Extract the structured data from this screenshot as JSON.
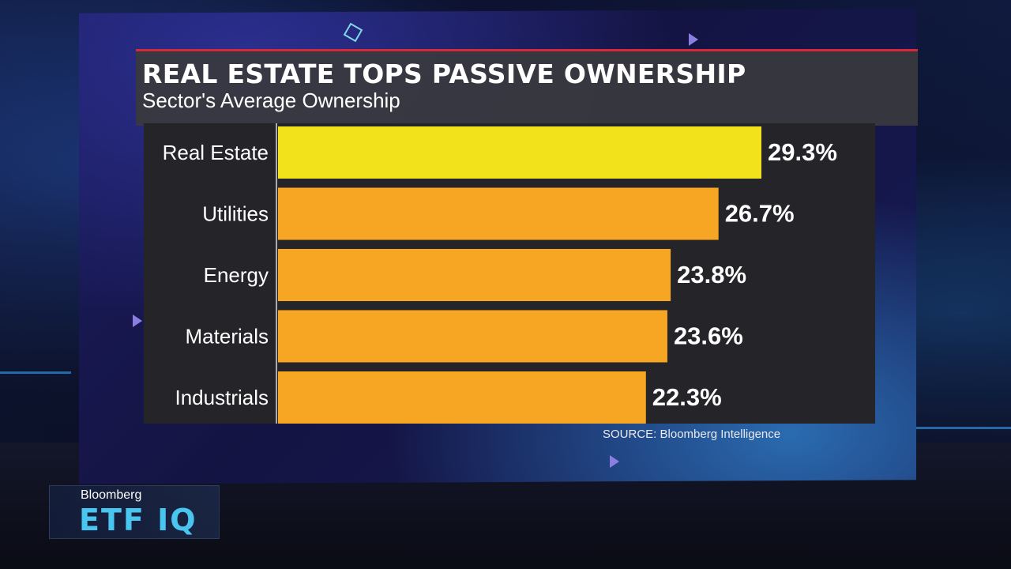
{
  "chart_data": {
    "type": "bar",
    "orientation": "horizontal",
    "title": "REAL ESTATE TOPS PASSIVE OWNERSHIP",
    "subtitle": "Sector's Average Ownership",
    "categories": [
      "Real Estate",
      "Utilities",
      "Energy",
      "Materials",
      "Industrials"
    ],
    "values": [
      29.3,
      26.7,
      23.8,
      23.6,
      22.3
    ],
    "value_labels": [
      "29.3%",
      "26.7%",
      "23.8%",
      "23.6%",
      "22.3%"
    ],
    "unit": "%",
    "xlim": [
      0,
      29.3
    ],
    "grid": false,
    "legend": "none",
    "colors": {
      "highlight": "#f2e21c",
      "bar": "#f7a623"
    },
    "source": "SOURCE: Bloomberg Intelligence"
  },
  "branding": {
    "network": "Bloomberg",
    "show": "ETF IQ"
  },
  "colors": {
    "title_rule": "#d7283a",
    "panel": "#3a3a3e",
    "chart_background": "#242429"
  }
}
